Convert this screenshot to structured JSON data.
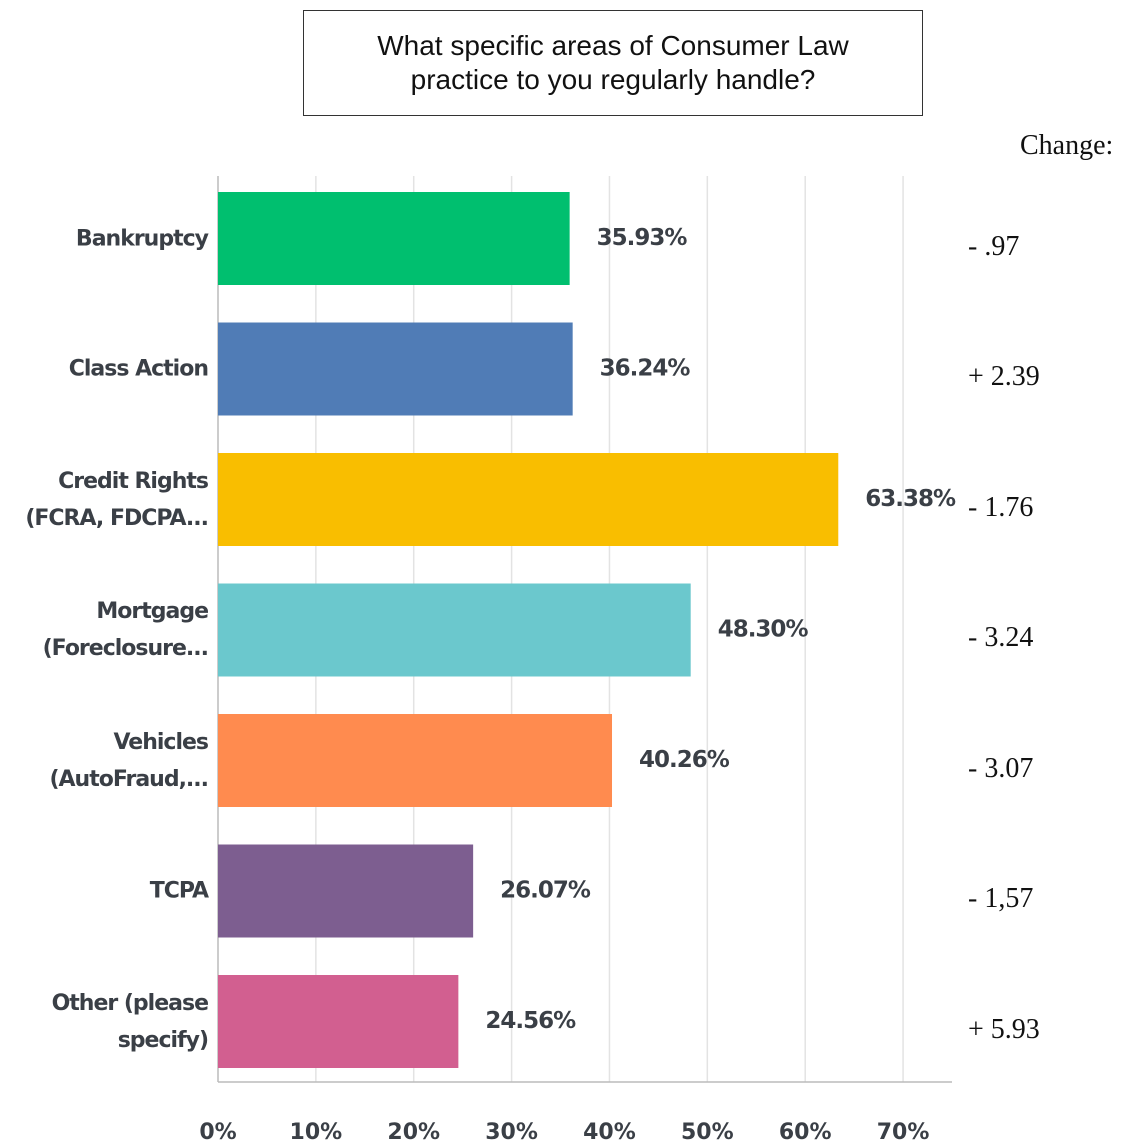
{
  "chart_data": {
    "type": "hbar",
    "title": "What specific areas of Consumer Law practice to you regularly handle?",
    "categories": [
      "Bankruptcy",
      "Class Action",
      "Credit Rights (FCRA, FDCPA...",
      "Mortgage (Foreclosure...",
      "Vehicles (AutoFraud,...",
      "TCPA",
      "Other (please specify)"
    ],
    "values": [
      35.93,
      36.24,
      63.38,
      48.3,
      40.26,
      26.07,
      24.56
    ],
    "value_labels": [
      "35.93%",
      "36.24%",
      "63.38%",
      "48.30%",
      "40.26%",
      "26.07%",
      "24.56%"
    ],
    "colors": [
      "#00bf6f",
      "#507cb6",
      "#f9be00",
      "#6bc8cd",
      "#ff8b4f",
      "#7d5e90",
      "#d25f90"
    ],
    "xlim": [
      0,
      75
    ],
    "xticks": [
      {
        "value": 0,
        "label": "0%"
      },
      {
        "value": 10,
        "label": "10%"
      },
      {
        "value": 20,
        "label": "20%"
      },
      {
        "value": 30,
        "label": "30%"
      },
      {
        "value": 40,
        "label": "40%"
      },
      {
        "value": 50,
        "label": "50%"
      },
      {
        "value": 60,
        "label": "60%"
      },
      {
        "value": 70,
        "label": "70%"
      }
    ],
    "grid": true,
    "change": {
      "title": "Change:",
      "labels": [
        "- .97",
        "+ 2.39",
        "- 1.76",
        "- 3.24",
        "- 3.07",
        "- 1,57",
        "+ 5.93"
      ]
    }
  }
}
